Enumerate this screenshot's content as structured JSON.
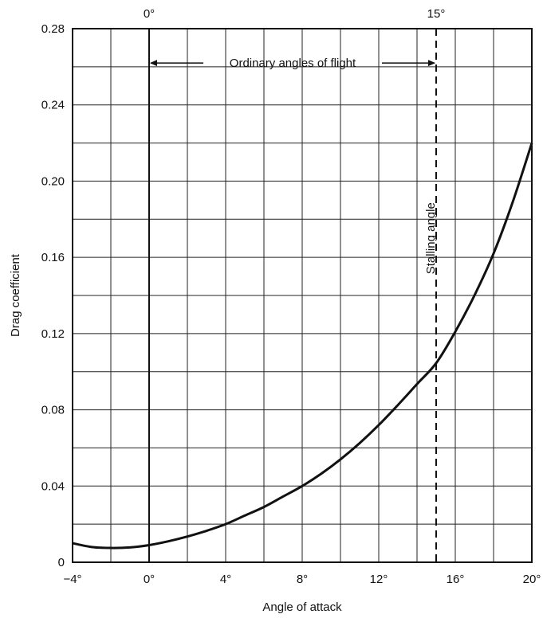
{
  "chart_data": {
    "type": "line",
    "title": "",
    "xlabel": "Angle of attack",
    "ylabel": "Drag coefficient",
    "xlim": [
      -4,
      20
    ],
    "ylim": [
      0,
      0.28
    ],
    "x_ticks": [
      -4,
      0,
      4,
      8,
      12,
      16,
      20
    ],
    "x_tick_labels": [
      "−4°",
      "0°",
      "4°",
      "8°",
      "12°",
      "16°",
      "20°"
    ],
    "y_ticks": [
      0,
      0.04,
      0.08,
      0.12,
      0.16,
      0.2,
      0.24,
      0.28
    ],
    "y_tick_labels": [
      "0",
      "0.04",
      "0.08",
      "0.12",
      "0.16",
      "0.20",
      "0.24",
      "0.28"
    ],
    "grid": true,
    "series": [
      {
        "x": [
          -4,
          -3,
          -2,
          -1,
          0,
          1,
          2,
          3,
          4,
          5,
          6,
          7,
          8,
          9,
          10,
          11,
          12,
          13,
          14,
          15,
          16,
          17,
          18,
          19,
          20
        ],
        "y": [
          0.01,
          0.008,
          0.0075,
          0.0078,
          0.009,
          0.011,
          0.0135,
          0.0165,
          0.02,
          0.0245,
          0.029,
          0.0345,
          0.04,
          0.0465,
          0.054,
          0.0625,
          0.072,
          0.0825,
          0.0935,
          0.1045,
          0.121,
          0.14,
          0.162,
          0.189,
          0.22
        ]
      }
    ],
    "annotations": {
      "top_marker_left_label": "0°",
      "top_marker_right_label": "15°",
      "ordinary_angles_label": "Ordinary angles of flight",
      "stalling_label": "Stalling angle",
      "zero_line_x": 0,
      "stall_line_x": 15,
      "arrow_y": 0.262
    }
  }
}
